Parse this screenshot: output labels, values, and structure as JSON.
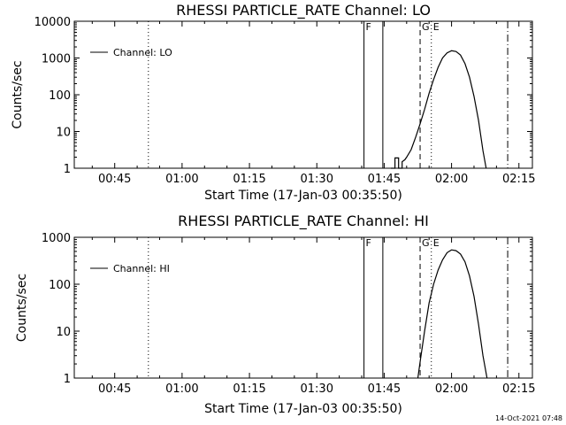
{
  "footer": {
    "date": "14-Oct-2021 07:48"
  },
  "chart_data": [
    {
      "type": "line",
      "title": "RHESSI PARTICLE_RATE Channel: LO",
      "xlabel": "Start Time (17-Jan-03 00:35:50)",
      "ylabel": "Counts/sec",
      "yscale": "log",
      "xlim_minutes": [
        36,
        138
      ],
      "ylim": [
        1,
        10000
      ],
      "x_ticks": [
        {
          "v": 45,
          "label": "00:45"
        },
        {
          "v": 60,
          "label": "01:00"
        },
        {
          "v": 75,
          "label": "01:15"
        },
        {
          "v": 90,
          "label": "01:30"
        },
        {
          "v": 105,
          "label": "01:45"
        },
        {
          "v": 120,
          "label": "02:00"
        },
        {
          "v": 135,
          "label": "02:15"
        }
      ],
      "y_ticks": [
        {
          "v": 1,
          "label": "1"
        },
        {
          "v": 10,
          "label": "10"
        },
        {
          "v": 100,
          "label": "100"
        },
        {
          "v": 1000,
          "label": "1000"
        },
        {
          "v": 10000,
          "label": "10000"
        }
      ],
      "legend": {
        "label": "Channel: LO",
        "position": "top-left"
      },
      "markers": [
        {
          "x": 52.5,
          "style": "dotted",
          "label": ""
        },
        {
          "x": 100.5,
          "style": "solid",
          "label": "F"
        },
        {
          "x": 104.7,
          "style": "solid",
          "label": ""
        },
        {
          "x": 113,
          "style": "dashed",
          "label": "G"
        },
        {
          "x": 115.5,
          "style": "dotted",
          "label": "E"
        },
        {
          "x": 132.5,
          "style": "dashdot",
          "label": ""
        }
      ],
      "series": [
        {
          "name": "Channel: LO",
          "x": [
            106.5,
            107.4,
            107.4,
            108.2,
            108.2,
            109.0,
            109.0,
            109.6,
            110,
            111,
            112,
            113,
            114,
            115,
            116,
            117,
            118,
            119,
            120,
            121,
            122,
            123,
            124,
            125,
            126,
            127,
            127.7
          ],
          "y": [
            1,
            1,
            1.9,
            1.9,
            1,
            1,
            1.5,
            1.7,
            2,
            3.2,
            7,
            16,
            40,
            110,
            260,
            560,
            1000,
            1380,
            1580,
            1500,
            1200,
            700,
            300,
            90,
            20,
            3,
            1
          ]
        }
      ]
    },
    {
      "type": "line",
      "title": "RHESSI PARTICLE_RATE Channel: HI",
      "xlabel": "Start Time (17-Jan-03 00:35:50)",
      "ylabel": "Counts/sec",
      "yscale": "log",
      "xlim_minutes": [
        36,
        138
      ],
      "ylim": [
        1,
        1000
      ],
      "x_ticks": [
        {
          "v": 45,
          "label": "00:45"
        },
        {
          "v": 60,
          "label": "01:00"
        },
        {
          "v": 75,
          "label": "01:15"
        },
        {
          "v": 90,
          "label": "01:30"
        },
        {
          "v": 105,
          "label": "01:45"
        },
        {
          "v": 120,
          "label": "02:00"
        },
        {
          "v": 135,
          "label": "02:15"
        }
      ],
      "y_ticks": [
        {
          "v": 1,
          "label": "1"
        },
        {
          "v": 10,
          "label": "10"
        },
        {
          "v": 100,
          "label": "100"
        },
        {
          "v": 1000,
          "label": "1000"
        }
      ],
      "legend": {
        "label": "Channel: HI",
        "position": "top-left"
      },
      "markers": [
        {
          "x": 52.5,
          "style": "dotted",
          "label": ""
        },
        {
          "x": 100.5,
          "style": "solid",
          "label": "F"
        },
        {
          "x": 104.7,
          "style": "solid",
          "label": ""
        },
        {
          "x": 113,
          "style": "dashed",
          "label": "G"
        },
        {
          "x": 115.5,
          "style": "dotted",
          "label": "E"
        },
        {
          "x": 132.5,
          "style": "dashdot",
          "label": ""
        }
      ],
      "series": [
        {
          "name": "Channel: HI",
          "x": [
            112.5,
            113,
            114,
            115,
            116,
            117,
            118,
            119,
            120,
            121,
            122,
            123,
            124,
            125,
            126,
            127,
            127.9
          ],
          "y": [
            1,
            2.2,
            10,
            40,
            100,
            200,
            330,
            470,
            540,
            520,
            440,
            300,
            150,
            55,
            14,
            3,
            1
          ]
        }
      ]
    }
  ]
}
